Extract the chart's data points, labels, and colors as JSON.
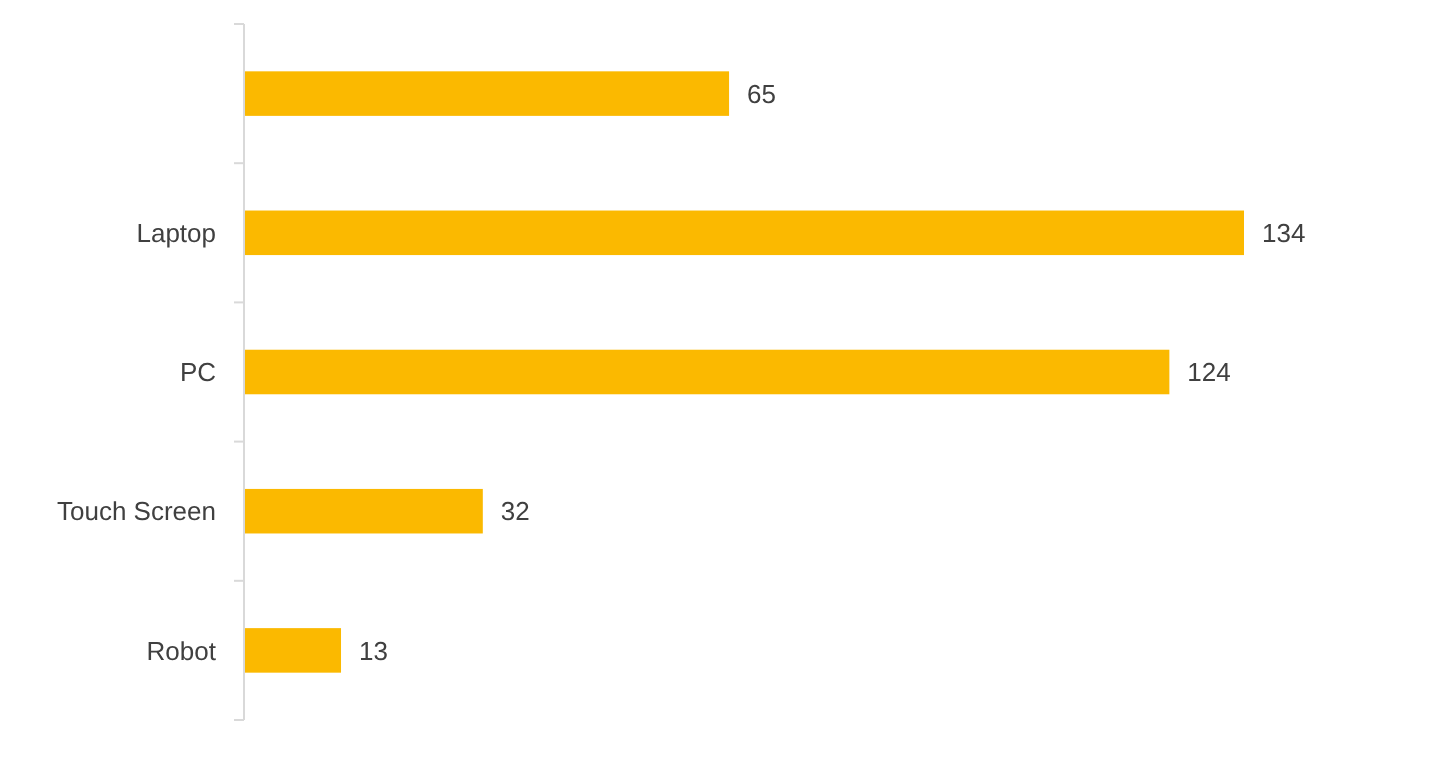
{
  "chart_data": {
    "type": "bar",
    "orientation": "horizontal",
    "categories": [
      null,
      "Laptop",
      "PC",
      "Touch Screen",
      "Robot"
    ],
    "values": [
      65,
      134,
      124,
      32,
      13
    ],
    "color": "#fbb900",
    "data_labels": true
  }
}
